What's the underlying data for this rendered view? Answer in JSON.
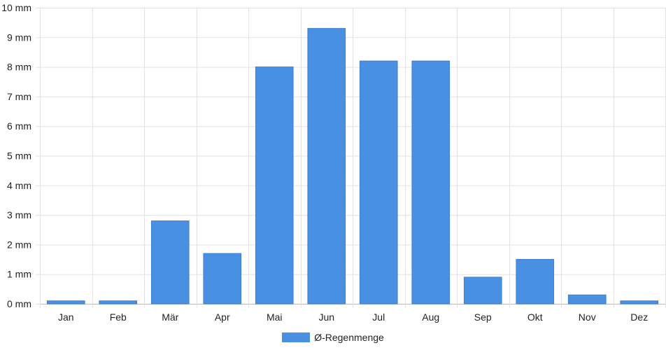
{
  "chart_data": {
    "type": "bar",
    "categories": [
      "Jan",
      "Feb",
      "Mär",
      "Apr",
      "Mai",
      "Jun",
      "Jul",
      "Aug",
      "Sep",
      "Okt",
      "Nov",
      "Dez"
    ],
    "series": [
      {
        "name": "Ø-Regenmenge",
        "values": [
          0.1,
          0.1,
          2.8,
          1.7,
          8.0,
          9.3,
          8.2,
          8.2,
          0.9,
          1.5,
          0.3,
          0.1
        ],
        "color": "#4a90e2"
      }
    ],
    "ylim": [
      0,
      10
    ],
    "yticks": [
      "0 mm",
      "1 mm",
      "2 mm",
      "3 mm",
      "4 mm",
      "5 mm",
      "6 mm",
      "7 mm",
      "8 mm",
      "9 mm",
      "10 mm"
    ],
    "grid": true,
    "legend_position": "bottom"
  }
}
